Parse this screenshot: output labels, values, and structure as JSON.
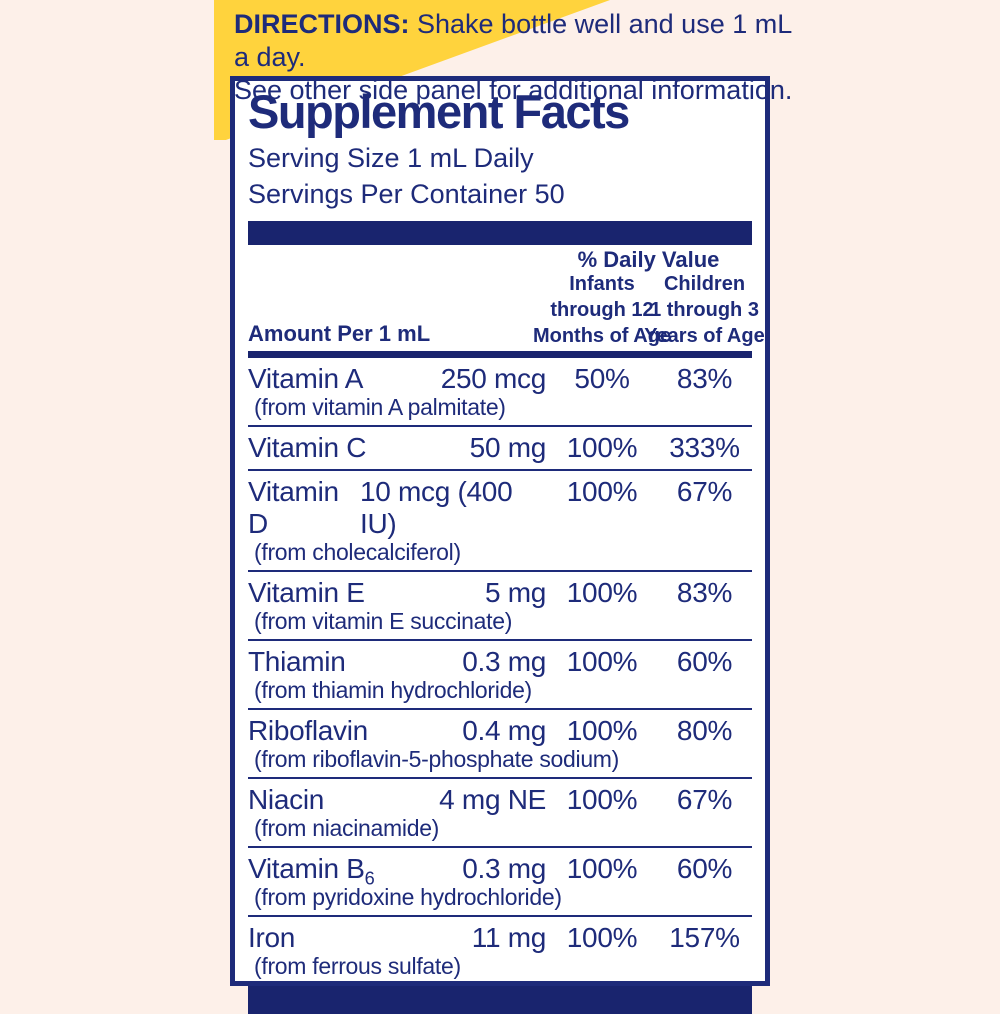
{
  "colors": {
    "navy_text": "#1e2b7a",
    "bar_navy": "#19246e",
    "banner_yellow": "#ffd33d",
    "page_background": "#fdf0e9",
    "panel_background": "#ffffff"
  },
  "directions": {
    "label": "DIRECTIONS:",
    "line1_rest": " Shake bottle well and use 1 mL a day.",
    "line2": "See other side panel for additional information."
  },
  "panel": {
    "title": "Supplement Facts",
    "serving_size": "Serving Size 1 mL Daily",
    "servings_per_container": "Servings Per Container 50",
    "header": {
      "amount_col": "Amount Per 1 mL",
      "daily_value": "% Daily Value",
      "infants": [
        "Infants",
        "through 12",
        "Months of Age"
      ],
      "children": [
        "Children",
        "1 through 3",
        "Years of Age"
      ]
    },
    "rows": [
      {
        "name": "Vitamin A",
        "amount": "250 mcg",
        "infants_dv": "50%",
        "children_dv": "83%",
        "source": "(from vitamin A palmitate)"
      },
      {
        "name": "Vitamin C",
        "amount": "50 mg",
        "infants_dv": "100%",
        "children_dv": "333%"
      },
      {
        "name": "Vitamin D",
        "amount": "10 mcg (400 IU)",
        "infants_dv": "100%",
        "children_dv": "67%",
        "source": "(from cholecalciferol)"
      },
      {
        "name": "Vitamin E",
        "amount": "5 mg",
        "infants_dv": "100%",
        "children_dv": "83%",
        "source": "(from vitamin E succinate)"
      },
      {
        "name": "Thiamin",
        "amount": "0.3 mg",
        "infants_dv": "100%",
        "children_dv": "60%",
        "source": "(from thiamin hydrochloride)"
      },
      {
        "name": "Riboflavin",
        "amount": "0.4 mg",
        "infants_dv": "100%",
        "children_dv": "80%",
        "source": "(from riboflavin-5-phosphate sodium)"
      },
      {
        "name": "Niacin",
        "amount": "4 mg NE",
        "infants_dv": "100%",
        "children_dv": "67%",
        "source": "(from niacinamide)"
      },
      {
        "name": "Vitamin B",
        "name_sub": "6",
        "amount": "0.3 mg",
        "infants_dv": "100%",
        "children_dv": "60%",
        "source": "(from pyridoxine hydrochloride)"
      },
      {
        "name": "Iron",
        "amount": "11 mg",
        "infants_dv": "100%",
        "children_dv": "157%",
        "source": "(from ferrous sulfate)"
      }
    ]
  }
}
